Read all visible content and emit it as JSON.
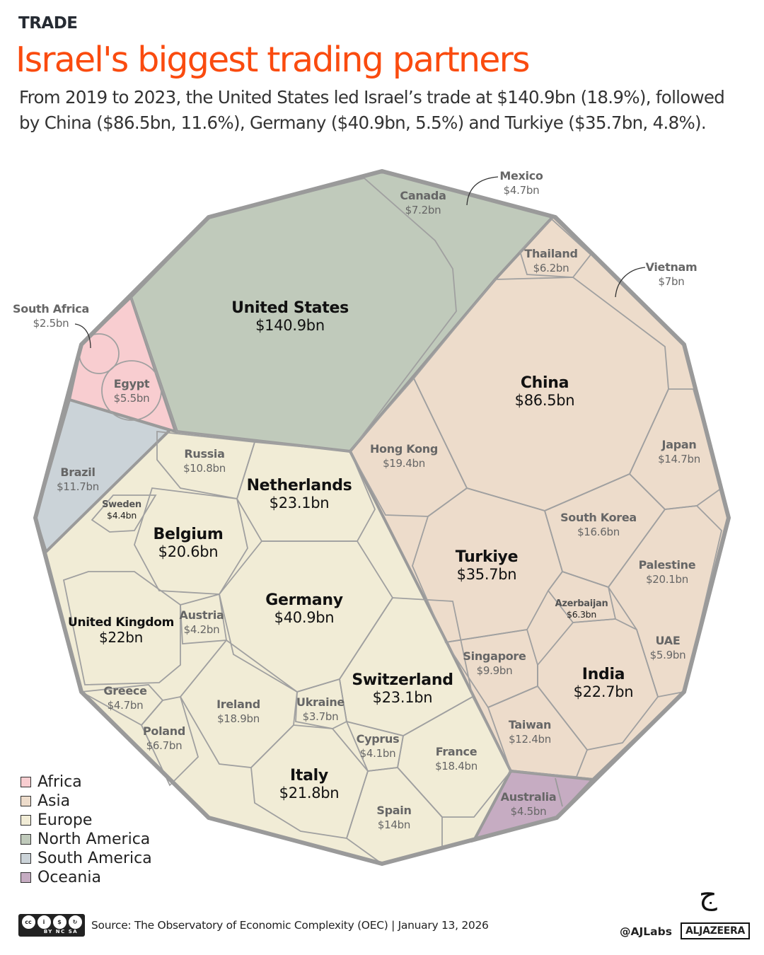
{
  "header": {
    "kicker": "TRADE",
    "title": "Israel's biggest trading partners",
    "subtitle": "From 2019 to 2023, the United States led Israel’s trade at $140.9bn (18.9%), followed by China ($86.5bn, 11.6%), Germany ($40.9bn, 5.5%) and Turkiye ($35.7bn, 4.8%)."
  },
  "chart_data": {
    "type": "treemap",
    "layout": "voronoi",
    "unit": "$bn",
    "regions": [
      {
        "name": "Africa",
        "color": "#f8cdd0"
      },
      {
        "name": "Asia",
        "color": "#eddccb"
      },
      {
        "name": "Europe",
        "color": "#f1ecd6"
      },
      {
        "name": "North America",
        "color": "#c0cabb"
      },
      {
        "name": "South America",
        "color": "#cbd3d8"
      },
      {
        "name": "Oceania",
        "color": "#c6acc2"
      }
    ],
    "items": [
      {
        "name": "United States",
        "label": "$140.9bn",
        "value": 140.9,
        "region": "North America"
      },
      {
        "name": "Canada",
        "label": "$7.2bn",
        "value": 7.2,
        "region": "North America"
      },
      {
        "name": "Mexico",
        "label": "$4.7bn",
        "value": 4.7,
        "region": "North America"
      },
      {
        "name": "China",
        "label": "$86.5bn",
        "value": 86.5,
        "region": "Asia"
      },
      {
        "name": "Thailand",
        "label": "$6.2bn",
        "value": 6.2,
        "region": "Asia"
      },
      {
        "name": "Vietnam",
        "label": "$7bn",
        "value": 7,
        "region": "Asia"
      },
      {
        "name": "Hong Kong",
        "label": "$19.4bn",
        "value": 19.4,
        "region": "Asia"
      },
      {
        "name": "Japan",
        "label": "$14.7bn",
        "value": 14.7,
        "region": "Asia"
      },
      {
        "name": "South Korea",
        "label": "$16.6bn",
        "value": 16.6,
        "region": "Asia"
      },
      {
        "name": "Turkiye",
        "label": "$35.7bn",
        "value": 35.7,
        "region": "Asia"
      },
      {
        "name": "Palestine",
        "label": "$20.1bn",
        "value": 20.1,
        "region": "Asia"
      },
      {
        "name": "Azerbaijan",
        "label": "$6.3bn",
        "value": 6.3,
        "region": "Asia"
      },
      {
        "name": "Singapore",
        "label": "$9.9bn",
        "value": 9.9,
        "region": "Asia"
      },
      {
        "name": "India",
        "label": "$22.7bn",
        "value": 22.7,
        "region": "Asia"
      },
      {
        "name": "UAE",
        "label": "$5.9bn",
        "value": 5.9,
        "region": "Asia"
      },
      {
        "name": "Taiwan",
        "label": "$12.4bn",
        "value": 12.4,
        "region": "Asia"
      },
      {
        "name": "Australia",
        "label": "$4.5bn",
        "value": 4.5,
        "region": "Oceania"
      },
      {
        "name": "South Africa",
        "label": "$2.5bn",
        "value": 2.5,
        "region": "Africa"
      },
      {
        "name": "Egypt",
        "label": "$5.5bn",
        "value": 5.5,
        "region": "Africa"
      },
      {
        "name": "Brazil",
        "label": "$11.7bn",
        "value": 11.7,
        "region": "South America"
      },
      {
        "name": "Russia",
        "label": "$10.8bn",
        "value": 10.8,
        "region": "Europe"
      },
      {
        "name": "Netherlands",
        "label": "$23.1bn",
        "value": 23.1,
        "region": "Europe"
      },
      {
        "name": "Belgium",
        "label": "$20.6bn",
        "value": 20.6,
        "region": "Europe"
      },
      {
        "name": "Sweden",
        "label": "$4.4bn",
        "value": 4.4,
        "region": "Europe"
      },
      {
        "name": "Germany",
        "label": "$40.9bn",
        "value": 40.9,
        "region": "Europe"
      },
      {
        "name": "United Kingdom",
        "label": "$22bn",
        "value": 22,
        "region": "Europe"
      },
      {
        "name": "Austria",
        "label": "$4.2bn",
        "value": 4.2,
        "region": "Europe"
      },
      {
        "name": "Switzerland",
        "label": "$23.1bn",
        "value": 23.1,
        "region": "Europe"
      },
      {
        "name": "Greece",
        "label": "$4.7bn",
        "value": 4.7,
        "region": "Europe"
      },
      {
        "name": "Ireland",
        "label": "$18.9bn",
        "value": 18.9,
        "region": "Europe"
      },
      {
        "name": "Ukraine",
        "label": "$3.7bn",
        "value": 3.7,
        "region": "Europe"
      },
      {
        "name": "Poland",
        "label": "$6.7bn",
        "value": 6.7,
        "region": "Europe"
      },
      {
        "name": "Cyprus",
        "label": "$4.1bn",
        "value": 4.1,
        "region": "Europe"
      },
      {
        "name": "France",
        "label": "$18.4bn",
        "value": 18.4,
        "region": "Europe"
      },
      {
        "name": "Italy",
        "label": "$21.8bn",
        "value": 21.8,
        "region": "Europe"
      },
      {
        "name": "Spain",
        "label": "$14bn",
        "value": 14,
        "region": "Europe"
      }
    ]
  },
  "legend": [
    "Africa",
    "Asia",
    "Europe",
    "North America",
    "South America",
    "Oceania"
  ],
  "footer": {
    "license": "BY NC SA",
    "source": "Source:  The Observatory of Economic Complexity (OEC) | January 13, 2026",
    "handle": "@AJLabs",
    "brand": "ALJAZEERA"
  }
}
